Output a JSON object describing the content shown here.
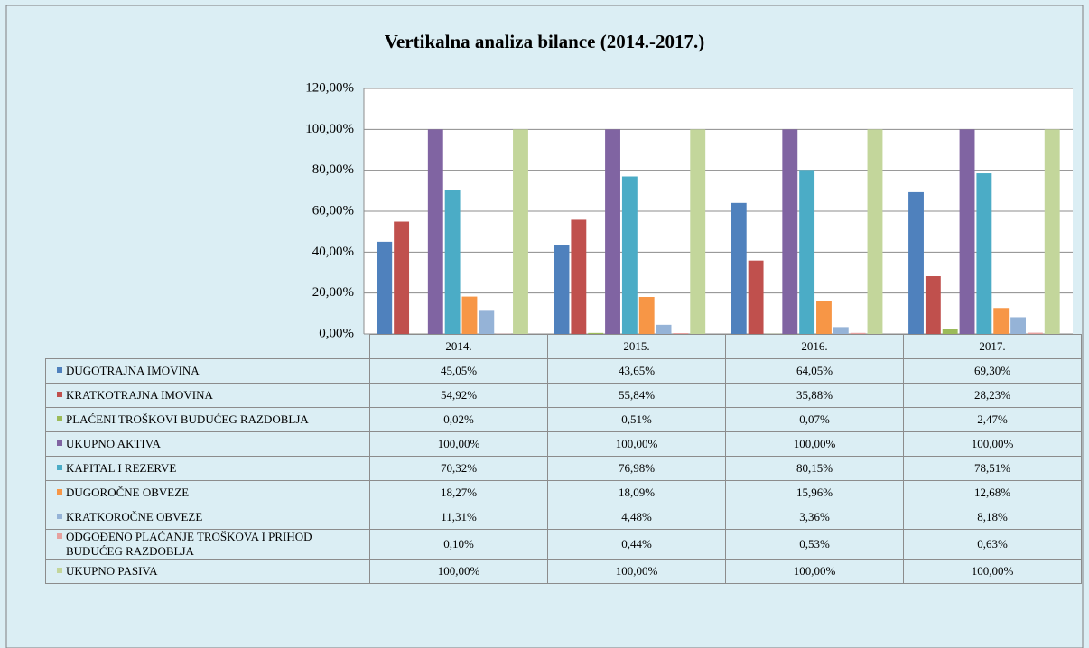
{
  "chart_data": {
    "type": "bar",
    "title": "Vertikalna analiza bilance (2014.-2017.)",
    "categories": [
      "2014.",
      "2015.",
      "2016.",
      "2017."
    ],
    "ylim": [
      0,
      120
    ],
    "yticks": [
      {
        "value": 0,
        "label": "0,00%"
      },
      {
        "value": 20,
        "label": "20,00%"
      },
      {
        "value": 40,
        "label": "40,00%"
      },
      {
        "value": 60,
        "label": "60,00%"
      },
      {
        "value": 80,
        "label": "80,00%"
      },
      {
        "value": 100,
        "label": "100,00%"
      },
      {
        "value": 120,
        "label": "120,00%"
      }
    ],
    "grid": true,
    "series": [
      {
        "name": "DUGOTRAJNA IMOVINA",
        "color": "#4f81bd",
        "values": [
          45.05,
          43.65,
          64.05,
          69.3
        ],
        "value_labels": [
          "45,05%",
          "43,65%",
          "64,05%",
          "69,30%"
        ]
      },
      {
        "name": "KRATKOTRAJNA IMOVINA",
        "color": "#c0504d",
        "values": [
          54.92,
          55.84,
          35.88,
          28.23
        ],
        "value_labels": [
          "54,92%",
          "55,84%",
          "35,88%",
          "28,23%"
        ]
      },
      {
        "name": "PLAĆENI TROŠKOVI BUDUĆEG RAZDOBLJA",
        "color": "#9bbb59",
        "values": [
          0.02,
          0.51,
          0.07,
          2.47
        ],
        "value_labels": [
          "0,02%",
          "0,51%",
          "0,07%",
          "2,47%"
        ]
      },
      {
        "name": "UKUPNO AKTIVA",
        "color": "#8064a2",
        "values": [
          100,
          100,
          100,
          100
        ],
        "value_labels": [
          "100,00%",
          "100,00%",
          "100,00%",
          "100,00%"
        ]
      },
      {
        "name": "KAPITAL I REZERVE",
        "color": "#4bacc6",
        "values": [
          70.32,
          76.98,
          80.15,
          78.51
        ],
        "value_labels": [
          "70,32%",
          "76,98%",
          "80,15%",
          "78,51%"
        ]
      },
      {
        "name": "DUGOROČNE OBVEZE",
        "color": "#f79646",
        "values": [
          18.27,
          18.09,
          15.96,
          12.68
        ],
        "value_labels": [
          "18,27%",
          "18,09%",
          "15,96%",
          "12,68%"
        ]
      },
      {
        "name": "KRATKOROČNE OBVEZE",
        "color": "#95b3d7",
        "values": [
          11.31,
          4.48,
          3.36,
          8.18
        ],
        "value_labels": [
          "11,31%",
          "4,48%",
          "3,36%",
          "8,18%"
        ]
      },
      {
        "name": "ODGOĐENO PLAĆANJE TROŠKOVA I PRIHOD BUDUĆEG RAZDOBLJA",
        "color": "#e6a19f",
        "values": [
          0.1,
          0.44,
          0.53,
          0.63
        ],
        "value_labels": [
          "0,10%",
          "0,44%",
          "0,53%",
          "0,63%"
        ]
      },
      {
        "name": "UKUPNO PASIVA",
        "color": "#c3d69b",
        "values": [
          100,
          100,
          100,
          100
        ],
        "value_labels": [
          "100,00%",
          "100,00%",
          "100,00%",
          "100,00%"
        ]
      }
    ]
  }
}
